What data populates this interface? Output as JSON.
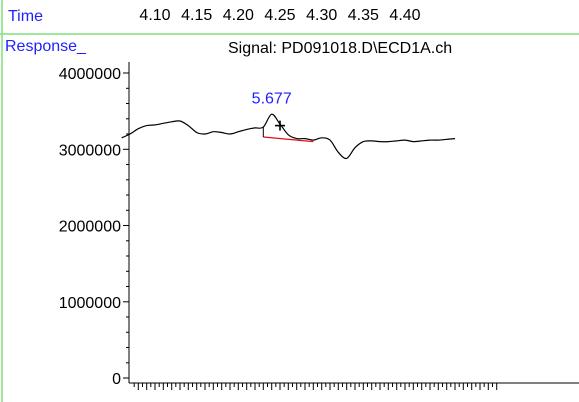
{
  "panel": {
    "time_label": "Time",
    "response_label": "Response_",
    "signal_title": "Signal: PD091018.D\\ECD1A.ch",
    "peak_label": "5.677"
  },
  "colors": {
    "frame": "#7fe07f",
    "label_blue": "#1f1fff",
    "baseline_red": "#e01010",
    "trace": "#000000"
  },
  "chart_data": {
    "type": "line",
    "title": "Signal: PD091018.D\\ECD1A.ch",
    "xlabel": "Time",
    "ylabel": "Response_",
    "x_ticks": [
      "4.10",
      "4.15",
      "4.20",
      "4.25",
      "4.30",
      "4.35",
      "4.40"
    ],
    "y_ticks": [
      "4000000",
      "3000000",
      "2000000",
      "1000000",
      "0"
    ],
    "ylim": [
      0,
      4000000
    ],
    "xlim": [
      4.06,
      4.46
    ],
    "series": [
      {
        "x": [
          4.06,
          4.07,
          4.08,
          4.09,
          4.1,
          4.11,
          4.12,
          4.13,
          4.14,
          4.15,
          4.16,
          4.17,
          4.18,
          4.19,
          4.2,
          4.21,
          4.22,
          4.23,
          4.24,
          4.25,
          4.26,
          4.27,
          4.28,
          4.29,
          4.3,
          4.31,
          4.32,
          4.33,
          4.34,
          4.35,
          4.36,
          4.37,
          4.38,
          4.39,
          4.4,
          4.41,
          4.42,
          4.43,
          4.44,
          4.45,
          4.46
        ],
        "values": [
          3150000,
          3200000,
          3270000,
          3310000,
          3320000,
          3340000,
          3360000,
          3370000,
          3310000,
          3220000,
          3200000,
          3230000,
          3220000,
          3200000,
          3230000,
          3260000,
          3280000,
          3290000,
          3460000,
          3330000,
          3190000,
          3140000,
          3140000,
          3120000,
          3150000,
          3120000,
          2960000,
          2880000,
          3020000,
          3100000,
          3110000,
          3100000,
          3100000,
          3110000,
          3120000,
          3100000,
          3110000,
          3120000,
          3120000,
          3130000,
          3140000
        ]
      }
    ],
    "annotations": [
      {
        "text": "5.677",
        "x": 4.24,
        "y": 3600000
      }
    ],
    "baseline": {
      "x": [
        4.23,
        4.29
      ],
      "y": [
        3160000,
        3100000
      ]
    },
    "marker": {
      "x": 4.25,
      "y": 3310000
    }
  }
}
